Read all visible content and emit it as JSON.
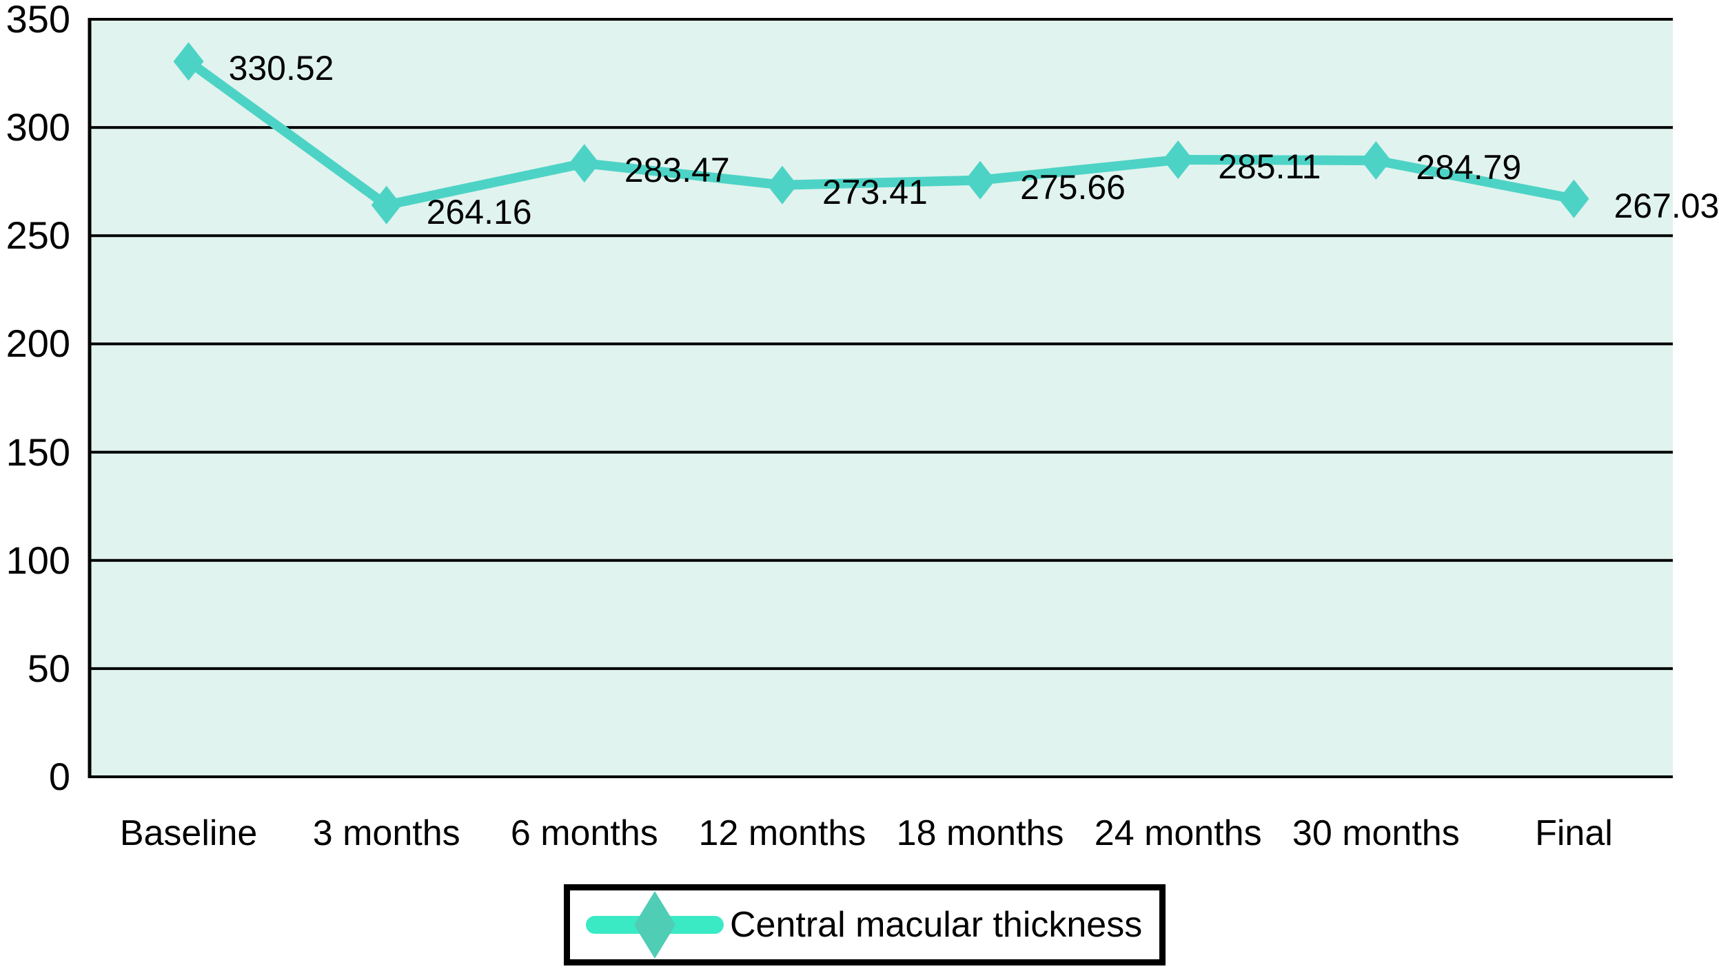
{
  "chart_data": {
    "type": "line",
    "categories": [
      "Baseline",
      "3 months",
      "6 months",
      "12 months",
      "18 months",
      "24 months",
      "30 months",
      "Final"
    ],
    "series": [
      {
        "name": "Central macular thickness",
        "values": [
          330.52,
          264.16,
          283.47,
          273.41,
          275.66,
          285.11,
          284.79,
          267.03
        ]
      }
    ],
    "data_labels": [
      "330.52",
      "264.16",
      "283.47",
      "273.41",
      "275.66",
      "285.11",
      "284.79",
      "267.03"
    ],
    "y_ticks": [
      0,
      50,
      100,
      150,
      200,
      250,
      300,
      350
    ],
    "ylim": [
      0,
      350
    ],
    "title": "",
    "xlabel": "",
    "ylabel": "",
    "grid": "horizontal",
    "legend_position": "bottom-center",
    "colors": {
      "line": "#4DD3C6",
      "marker": "#4DD3C6",
      "legend_line": "#3AEAC4",
      "legend_marker": "#4FCDB5",
      "plot_background": "#E0F3EE",
      "gridline": "#000000",
      "text": "#000000",
      "canvas_background": "#FFFFFF"
    }
  },
  "legend": {
    "label": "Central macular thickness"
  }
}
